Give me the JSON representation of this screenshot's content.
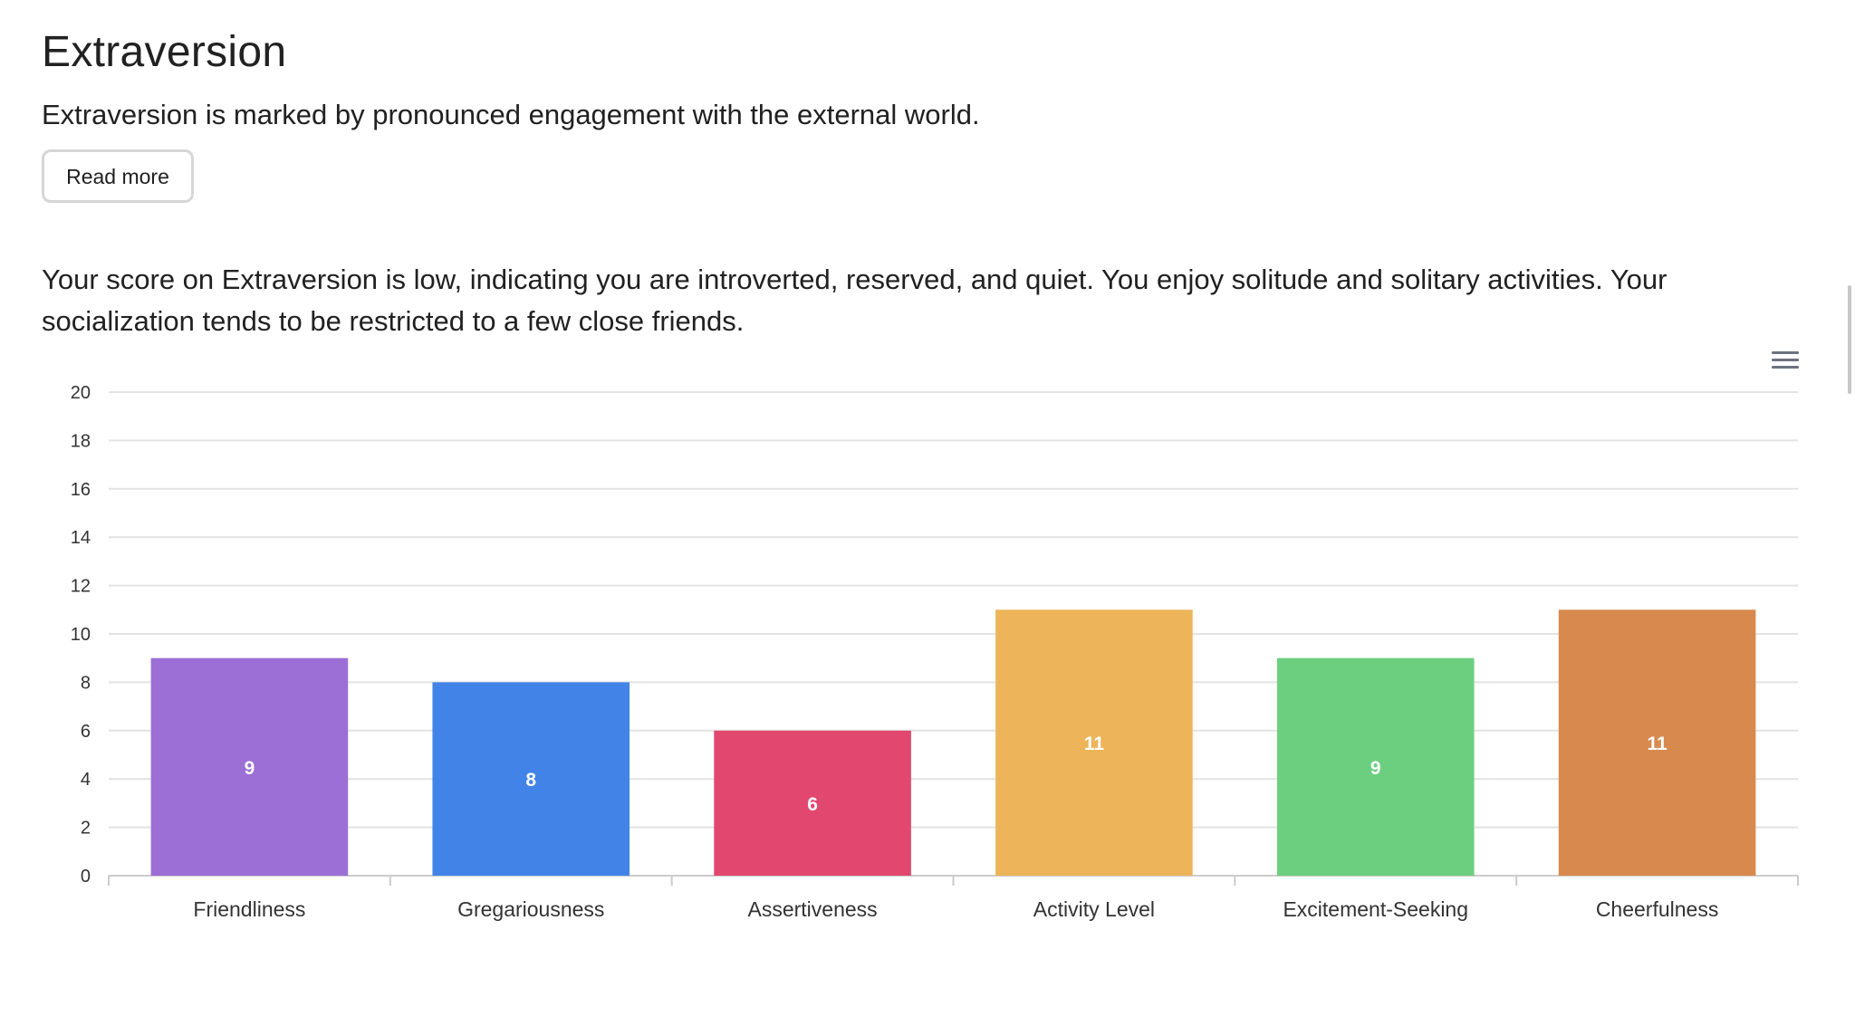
{
  "section": {
    "title": "Extraversion",
    "intro": "Extraversion is marked by pronounced engagement with the external world.",
    "read_more_label": "Read more",
    "score_text": "Your score on Extraversion is low, indicating you are introverted, reserved, and quiet. You enjoy solitude and solitary activities. Your socialization tends to be restricted to a few close friends."
  },
  "chart_menu": {
    "icon": "hamburger-menu-icon"
  },
  "chart_data": {
    "type": "bar",
    "title": "",
    "xlabel": "",
    "ylabel": "",
    "categories": [
      "Friendliness",
      "Gregariousness",
      "Assertiveness",
      "Activity Level",
      "Excitement-Seeking",
      "Cheerfulness"
    ],
    "values": [
      9,
      8,
      6,
      11,
      9,
      11
    ],
    "colors": [
      "#9b6fd6",
      "#4283e8",
      "#e2486f",
      "#edb459",
      "#6ccf80",
      "#d88a4e"
    ],
    "ylim": [
      0,
      20
    ],
    "yticks": [
      0,
      2,
      4,
      6,
      8,
      10,
      12,
      14,
      16,
      18,
      20
    ],
    "grid": true,
    "data_labels": true,
    "legend": "none"
  }
}
